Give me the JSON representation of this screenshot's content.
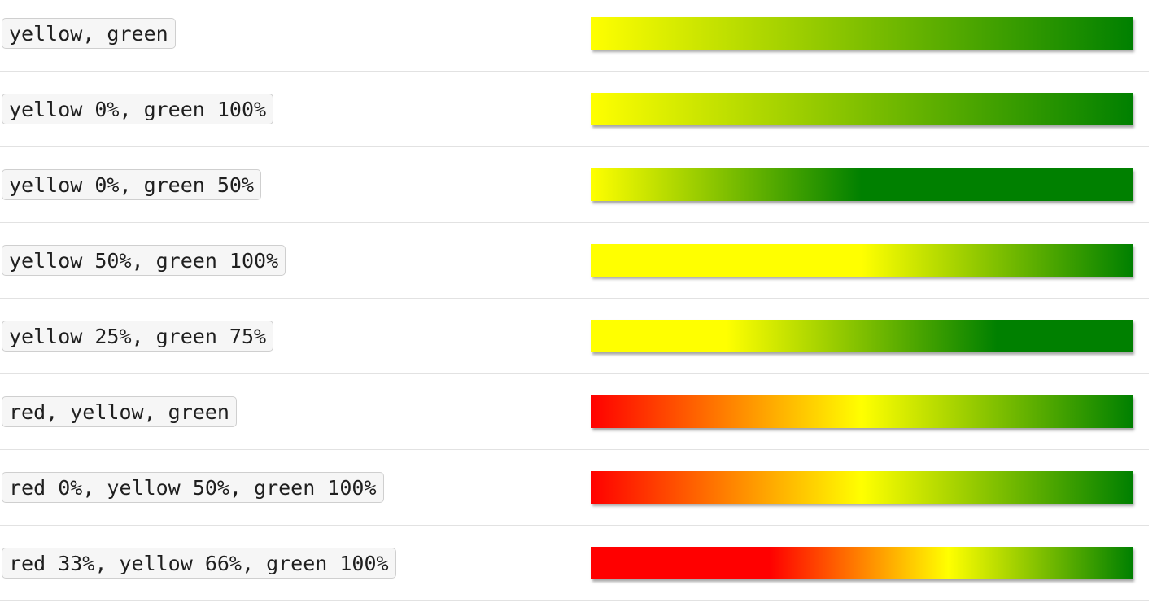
{
  "rows": [
    {
      "label": "yellow, green",
      "gradient": "linear-gradient(to right, #ffff00, #008000)"
    },
    {
      "label": "yellow 0%, green 100%",
      "gradient": "linear-gradient(to right, #ffff00 0%, #008000 100%)"
    },
    {
      "label": "yellow 0%, green 50%",
      "gradient": "linear-gradient(to right, #ffff00 0%, #008000 50%)"
    },
    {
      "label": "yellow 50%, green 100%",
      "gradient": "linear-gradient(to right, #ffff00 50%, #008000 100%)"
    },
    {
      "label": "yellow 25%, green 75%",
      "gradient": "linear-gradient(to right, #ffff00 25%, #008000 75%)"
    },
    {
      "label": "red, yellow, green",
      "gradient": "linear-gradient(to right, #ff0000, #ffff00, #008000)"
    },
    {
      "label": "red 0%, yellow 50%, green 100%",
      "gradient": "linear-gradient(to right, #ff0000 0%, #ffff00 50%, #008000 100%)"
    },
    {
      "label": "red 33%, yellow 66%, green 100%",
      "gradient": "linear-gradient(to right, #ff0000 33%, #ffff00 66%, #008000 100%)"
    }
  ]
}
